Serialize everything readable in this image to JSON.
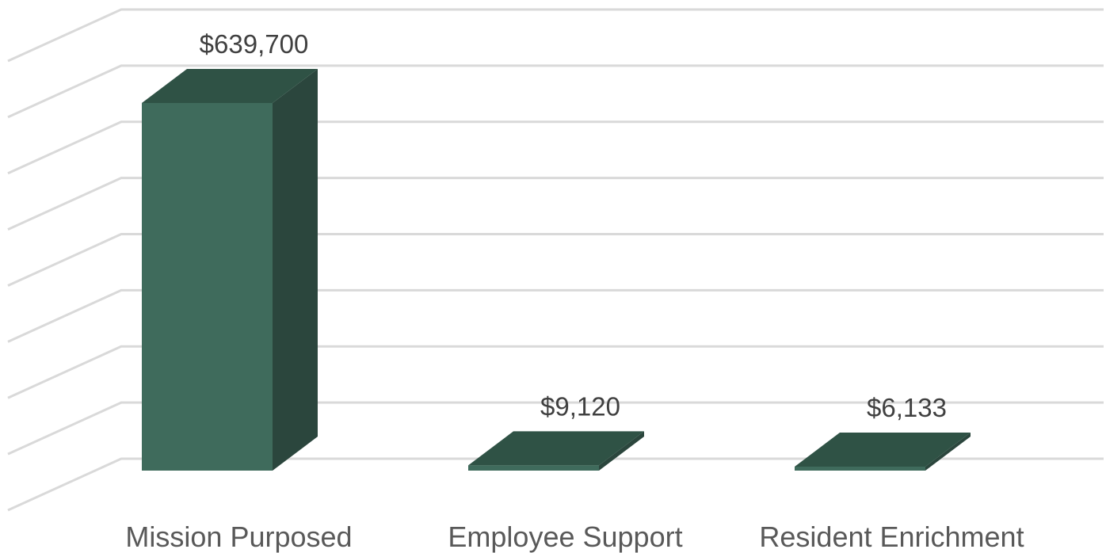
{
  "chart_data": {
    "type": "bar",
    "style": "3d-column",
    "categories": [
      "Mission Purposed",
      "Employee Support",
      "Resident Enrichment"
    ],
    "series": [
      {
        "values": [
          639700,
          9120,
          6133
        ],
        "labels": [
          "$639,700",
          "$9,120",
          "$6,133"
        ]
      }
    ],
    "ylim": [
      0,
      700000
    ],
    "grid": true,
    "legend": "none",
    "colors": {
      "front": "#3f6b5c",
      "side": "#2b463d",
      "top": "#2f5245",
      "grid": "#d9d9d9",
      "label": "#404040",
      "category": "#595959"
    }
  }
}
